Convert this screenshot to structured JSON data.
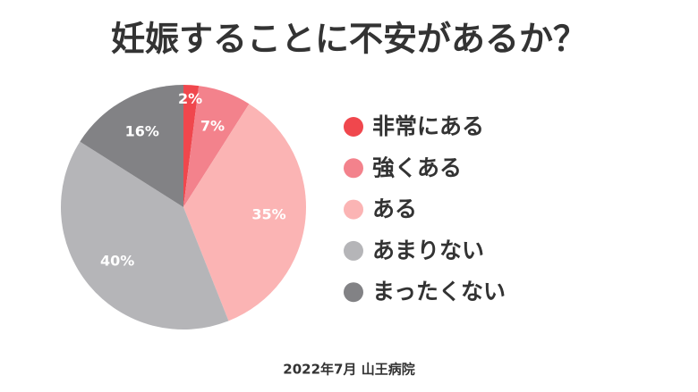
{
  "chart_data": {
    "type": "pie",
    "title": "妊娠することに不安があるか？",
    "categories": [
      "非常にある",
      "強くある",
      "ある",
      "あまりない",
      "まったくない"
    ],
    "values": [
      2,
      7,
      35,
      40,
      16
    ],
    "value_labels": [
      "2%",
      "7%",
      "35%",
      "40%",
      "16%"
    ],
    "colors": [
      "#f0474d",
      "#f3828c",
      "#fbb4b4",
      "#b5b5b8",
      "#828285"
    ],
    "source": "2022年7月 山王病院"
  }
}
